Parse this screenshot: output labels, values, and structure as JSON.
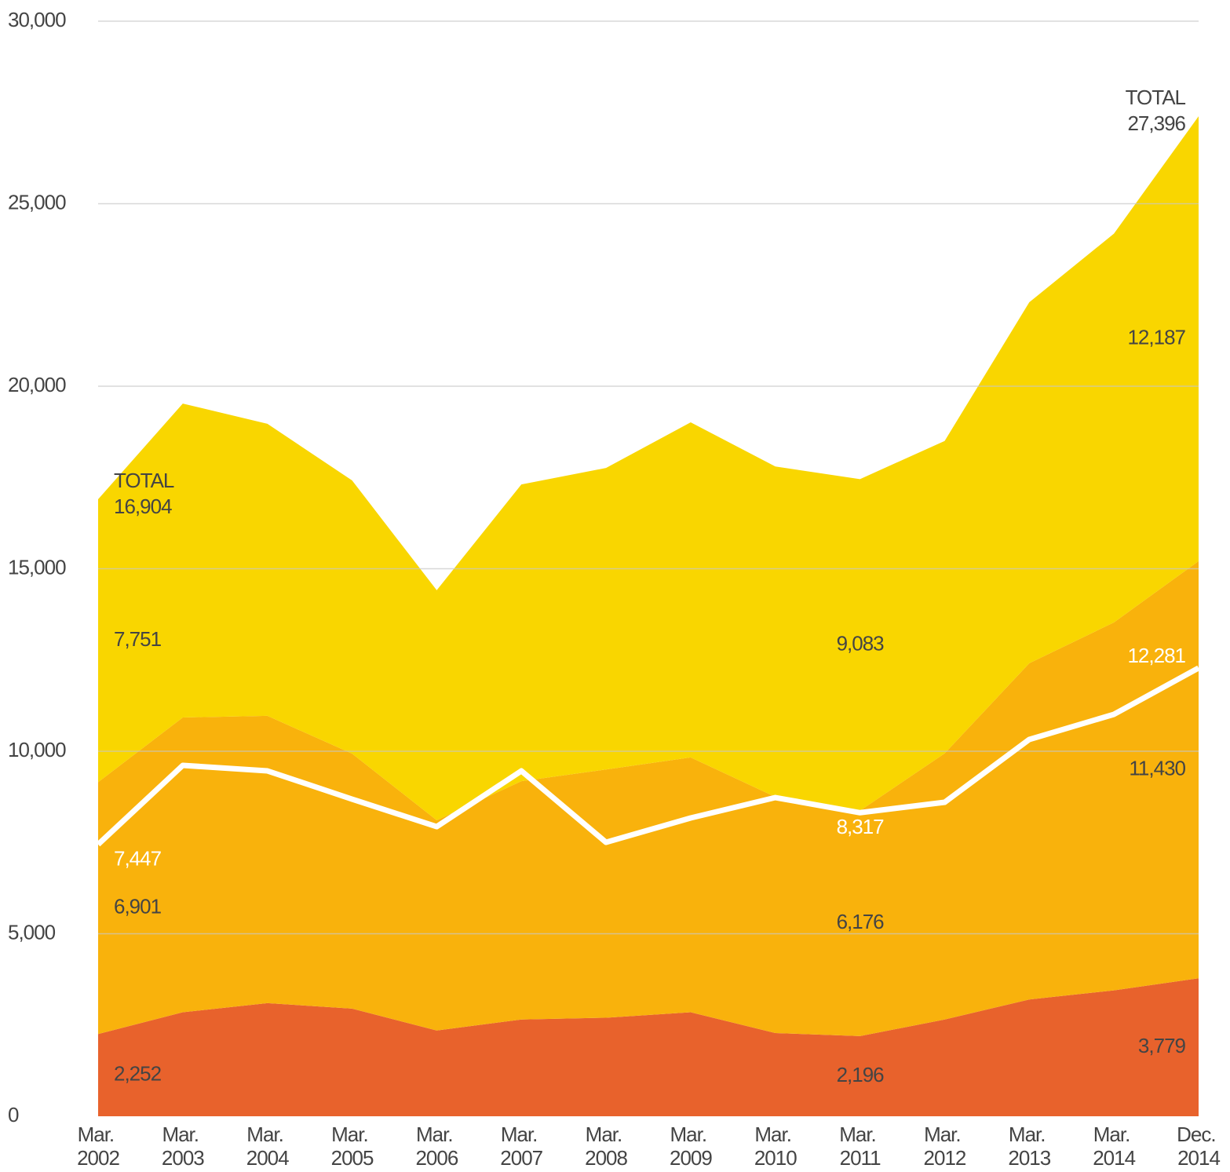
{
  "chart_data": {
    "type": "stacked_area",
    "categories": [
      "Mar. 2002",
      "Mar. 2003",
      "Mar. 2004",
      "Mar. 2005",
      "Mar. 2006",
      "Mar. 2007",
      "Mar. 2008",
      "Mar. 2009",
      "Mar. 2010",
      "Mar. 2011",
      "Mar. 2012",
      "Mar. 2013",
      "Mar. 2014",
      "Dec. 2014"
    ],
    "series": [
      {
        "color": "#e8622c",
        "values": [
          2252,
          2850,
          3100,
          2950,
          2350,
          2650,
          2700,
          2850,
          2280,
          2196,
          2650,
          3200,
          3450,
          3779
        ],
        "value_labels": [
          "2,252",
          null,
          null,
          null,
          null,
          null,
          null,
          null,
          null,
          "2,196",
          null,
          null,
          null,
          "3,779"
        ]
      },
      {
        "color": "#f9b20c",
        "values": [
          6901,
          8075,
          7870,
          6985,
          5760,
          6530,
          6800,
          6980,
          6470,
          6176,
          7290,
          9210,
          10080,
          11430
        ],
        "value_labels": [
          "6,901",
          null,
          null,
          null,
          null,
          null,
          null,
          null,
          null,
          "6,176",
          null,
          null,
          null,
          "11,430"
        ]
      },
      {
        "color": "#f9d600",
        "values": [
          7751,
          8600,
          8000,
          7485,
          6300,
          8130,
          8260,
          9180,
          9050,
          9083,
          8560,
          9890,
          10650,
          12187
        ],
        "value_labels": [
          "7,751",
          null,
          null,
          null,
          null,
          null,
          null,
          null,
          null,
          "9,083",
          null,
          null,
          null,
          "12,187"
        ]
      }
    ],
    "line": {
      "color": "#ffffff",
      "values": [
        7447,
        9613,
        9462,
        8688,
        7935,
        9462,
        7505,
        8172,
        8731,
        8317,
        8602,
        10323,
        11011,
        12281
      ],
      "value_labels": [
        "7,447",
        null,
        null,
        null,
        null,
        null,
        null,
        null,
        null,
        "8,317",
        null,
        null,
        null,
        "12,281"
      ]
    },
    "annotations": [
      {
        "text": "TOTAL",
        "value": 16904,
        "label": "16,904"
      },
      {
        "text": "TOTAL",
        "value": 27396,
        "label": "27,396"
      }
    ],
    "ylim": [
      0,
      30000
    ],
    "yticks": [
      0,
      {
        "value": 5000,
        "label": "5,000"
      },
      {
        "value": 10000,
        "label": "10,000"
      },
      {
        "value": 15000,
        "label": "15,000"
      },
      {
        "value": 20000,
        "label": "20,000"
      },
      {
        "value": 25000,
        "label": "25,000"
      },
      {
        "value": 30000,
        "label": "30,000"
      }
    ],
    "grid": true
  }
}
